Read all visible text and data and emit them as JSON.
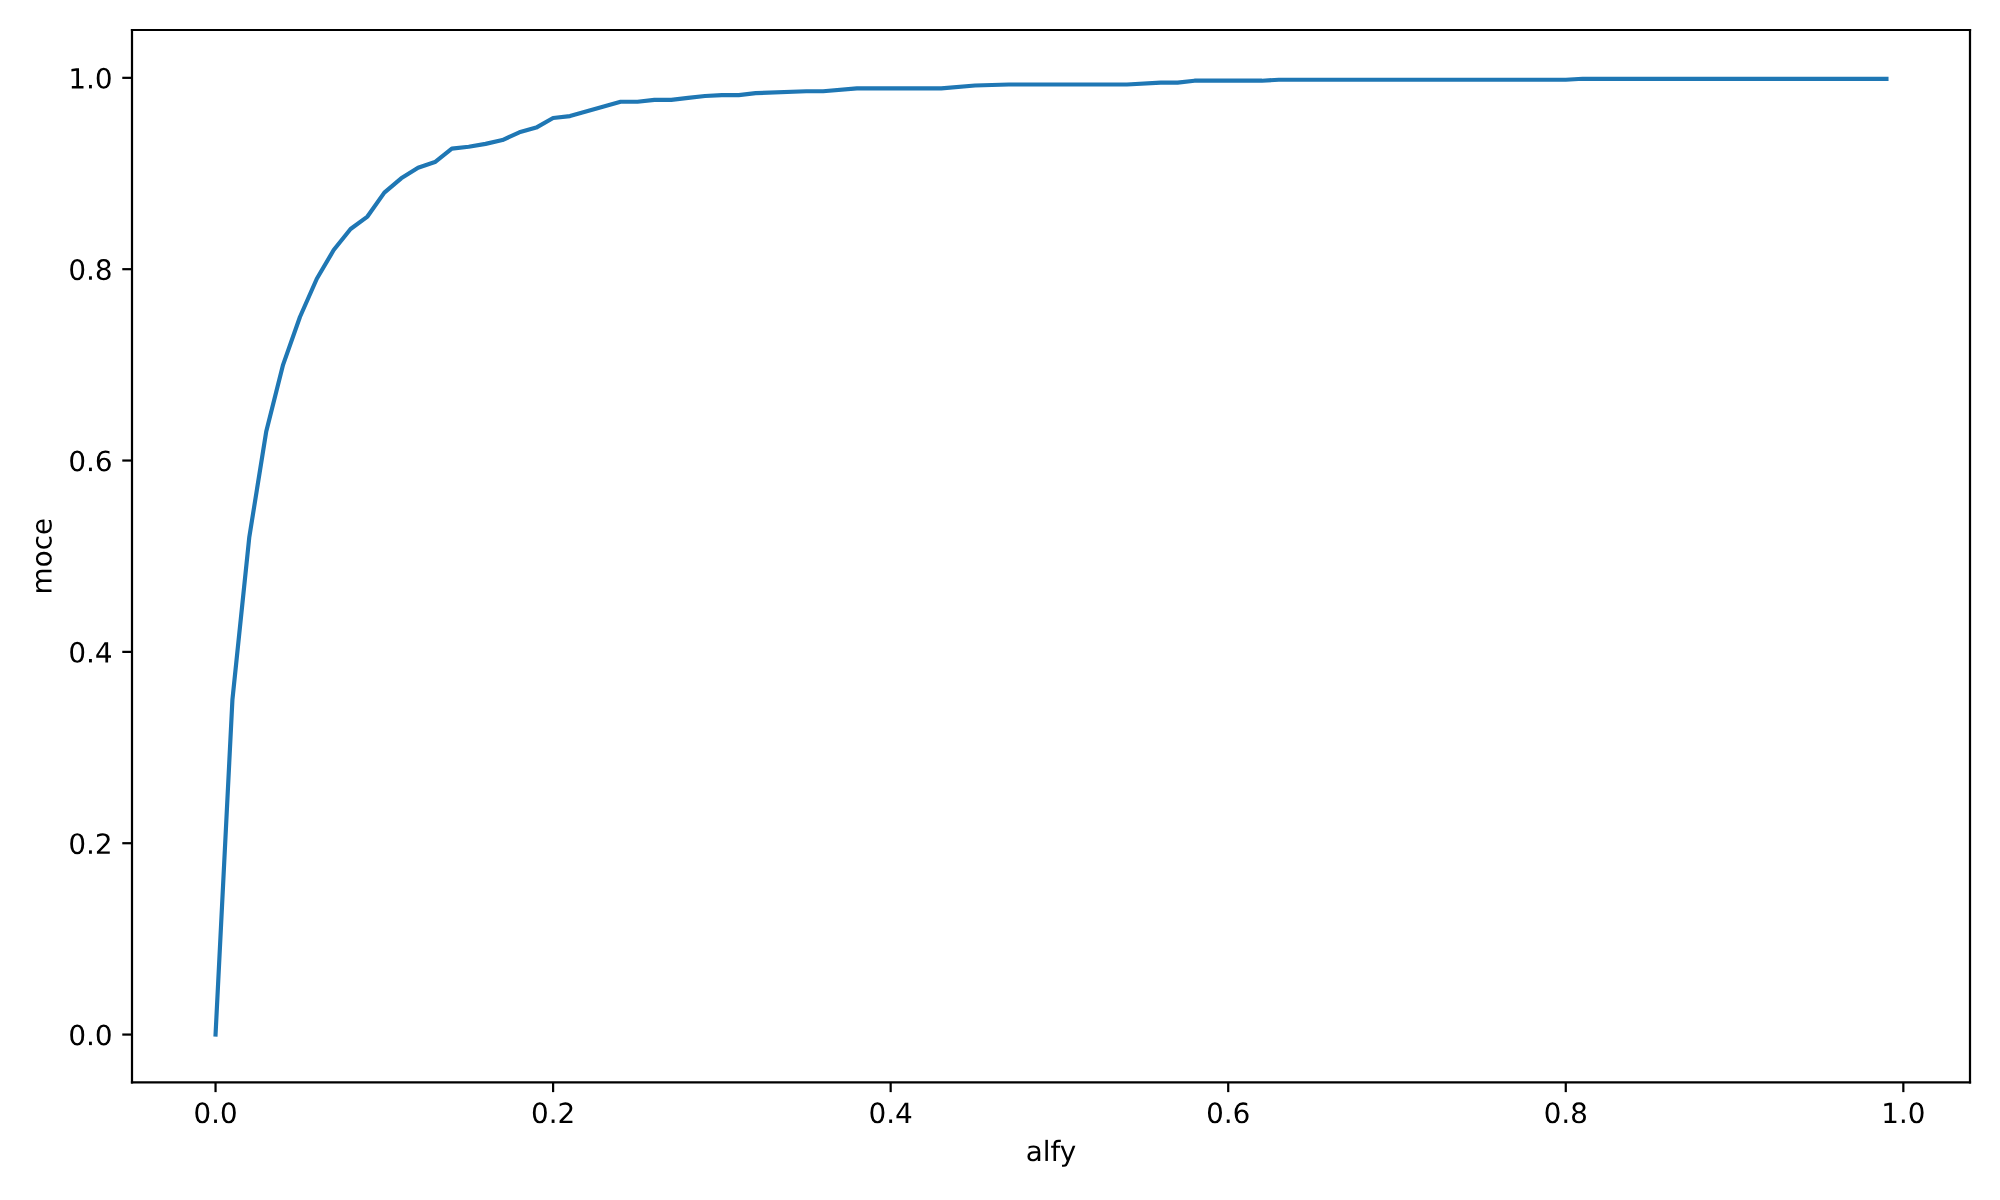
{
  "chart_data": {
    "type": "line",
    "xlabel": "alfy",
    "ylabel": "moce",
    "x": [
      0,
      0.01,
      0.02,
      0.03,
      0.04,
      0.05,
      0.06,
      0.07,
      0.08,
      0.09,
      0.1,
      0.11,
      0.12,
      0.13,
      0.14,
      0.15,
      0.16,
      0.17,
      0.18,
      0.19,
      0.2,
      0.21,
      0.22,
      0.23,
      0.24,
      0.25,
      0.26,
      0.27,
      0.28,
      0.29,
      0.3,
      0.31,
      0.32,
      0.35,
      0.36,
      0.38,
      0.43,
      0.45,
      0.47,
      0.54,
      0.56,
      0.57,
      0.58,
      0.62,
      0.63,
      0.8,
      0.81,
      0.99
    ],
    "series": [
      {
        "color": "#1f77b4",
        "values": [
          0,
          0.35,
          0.52,
          0.63,
          0.7,
          0.75,
          0.79,
          0.82,
          0.842,
          0.855,
          0.88,
          0.895,
          0.906,
          0.912,
          0.926,
          0.928,
          0.931,
          0.935,
          0.943,
          0.948,
          0.958,
          0.96,
          0.965,
          0.97,
          0.975,
          0.975,
          0.977,
          0.977,
          0.979,
          0.981,
          0.982,
          0.982,
          0.984,
          0.986,
          0.986,
          0.989,
          0.989,
          0.992,
          0.993,
          0.993,
          0.995,
          0.995,
          0.997,
          0.997,
          0.998,
          0.998,
          0.999,
          0.999
        ]
      }
    ],
    "xlim": [
      -0.0495,
      1.0395
    ],
    "ylim": [
      -0.05,
      1.05
    ],
    "xticks": [
      {
        "value": 0,
        "label": "0.0"
      },
      0.2,
      0.4,
      0.6,
      0.8,
      {
        "value": 1,
        "label": "1.0"
      }
    ],
    "yticks": [
      {
        "value": 0,
        "label": "0.0"
      },
      0.2,
      0.4,
      0.6,
      0.8,
      {
        "value": 1,
        "label": "1.0"
      }
    ],
    "grid": false,
    "legend": false,
    "marker": "none",
    "line_style": "solid"
  }
}
